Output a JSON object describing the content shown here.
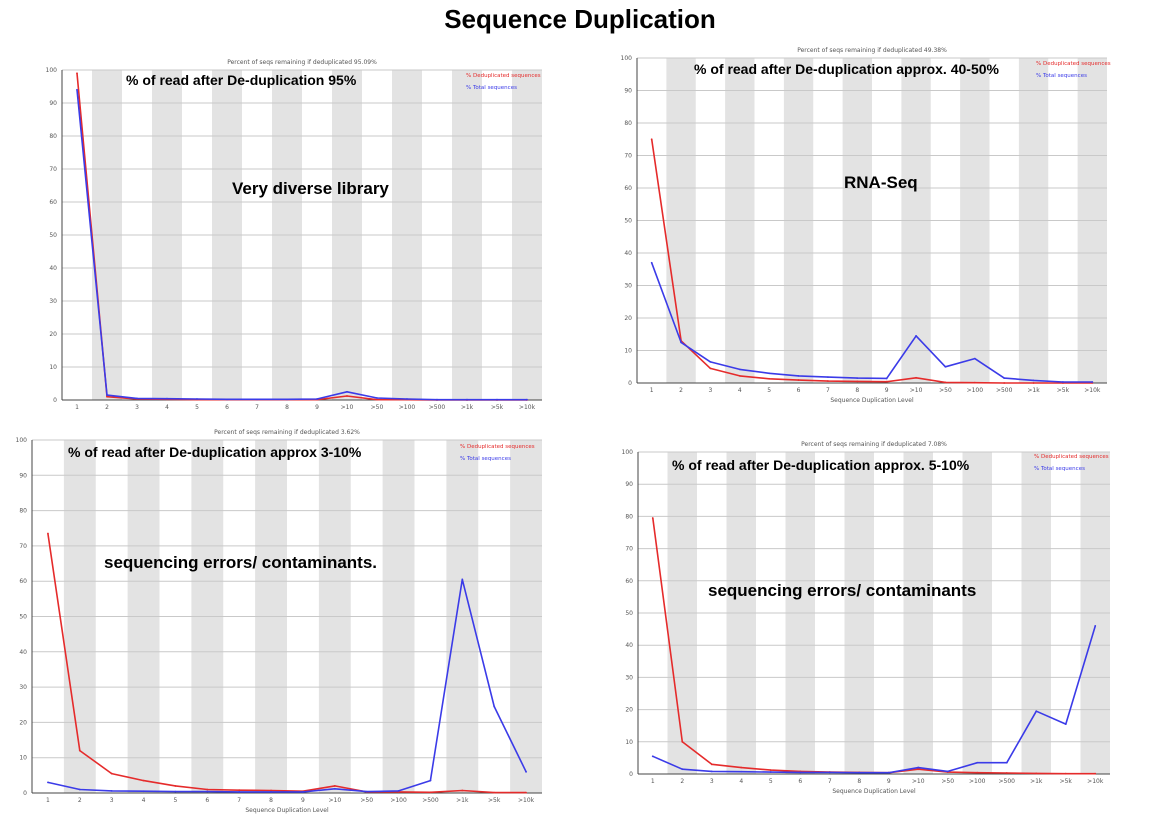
{
  "page": {
    "title": "Sequence Duplication"
  },
  "colors": {
    "dedup": "#e52b2b",
    "total": "#3b3be8",
    "stripe": "#e3e3e3",
    "axis": "#444444"
  },
  "chart_data": [
    {
      "type": "line",
      "title": "Percent of seqs remaining if deduplicated 95.09%",
      "xlabel": "",
      "ylabel": "",
      "annotation_top": "% of read after De-duplication 95%",
      "annotation_mid": "Very diverse library",
      "categories": [
        "1",
        "2",
        "3",
        "4",
        "5",
        "6",
        "7",
        "8",
        "9",
        ">10",
        ">50",
        ">100",
        ">500",
        ">1k",
        ">5k",
        ">10k"
      ],
      "yticks": [
        "0",
        "10",
        "20",
        "30",
        "40",
        "50",
        "60",
        "70",
        "80",
        "90",
        "100"
      ],
      "ylim": [
        0,
        100
      ],
      "grid": true,
      "legend_position": "top-right",
      "series": [
        {
          "name": "% Deduplicated sequences",
          "color": "#e52b2b",
          "values": [
            99,
            1,
            0.3,
            0.2,
            0.1,
            0.1,
            0.1,
            0.1,
            0.1,
            1.2,
            0.1,
            0.1,
            0,
            0,
            0,
            0
          ]
        },
        {
          "name": "% Total sequences",
          "color": "#3b3be8",
          "values": [
            94,
            1.5,
            0.5,
            0.4,
            0.3,
            0.2,
            0.2,
            0.2,
            0.3,
            2.5,
            0.6,
            0.3,
            0.1,
            0.1,
            0.1,
            0.1
          ]
        }
      ]
    },
    {
      "type": "line",
      "title": "Percent of seqs remaining if deduplicated 49.38%",
      "xlabel": "Sequence Duplication Level",
      "ylabel": "",
      "annotation_top": "% of read after De-duplication approx. 40-50%",
      "annotation_mid": "RNA-Seq",
      "categories": [
        "1",
        "2",
        "3",
        "4",
        "5",
        "6",
        "7",
        "8",
        "9",
        ">10",
        ">50",
        ">100",
        ">500",
        ">1k",
        ">5k",
        ">10k"
      ],
      "yticks": [
        "0",
        "10",
        "20",
        "30",
        "40",
        "50",
        "60",
        "70",
        "80",
        "90",
        "100"
      ],
      "ylim": [
        0,
        100
      ],
      "grid": true,
      "legend_position": "top-right",
      "series": [
        {
          "name": "% Deduplicated sequences",
          "color": "#e52b2b",
          "values": [
            75,
            13,
            4.5,
            2.2,
            1.3,
            0.9,
            0.6,
            0.5,
            0.4,
            1.6,
            0.2,
            0.1,
            0,
            0,
            0,
            0
          ]
        },
        {
          "name": "% Total sequences",
          "color": "#3b3be8",
          "values": [
            37,
            12.5,
            6.5,
            4.2,
            3,
            2.2,
            1.8,
            1.5,
            1.4,
            14.5,
            5,
            7.5,
            1.5,
            0.8,
            0.3,
            0.3
          ]
        }
      ]
    },
    {
      "type": "line",
      "title": "Percent of seqs remaining if deduplicated 3.62%",
      "xlabel": "Sequence Duplication Level",
      "ylabel": "",
      "annotation_top": "% of read after De-duplication approx 3-10%",
      "annotation_mid": "sequencing errors/ contaminants.",
      "categories": [
        "1",
        "2",
        "3",
        "4",
        "5",
        "6",
        "7",
        "8",
        "9",
        ">10",
        ">50",
        ">100",
        ">500",
        ">1k",
        ">5k",
        ">10k"
      ],
      "yticks": [
        "0",
        "10",
        "20",
        "30",
        "40",
        "50",
        "60",
        "70",
        "80",
        "90",
        "100"
      ],
      "ylim": [
        0,
        100
      ],
      "grid": true,
      "legend_position": "top-right",
      "series": [
        {
          "name": "% Deduplicated sequences",
          "color": "#e52b2b",
          "values": [
            73.5,
            12,
            5.5,
            3.5,
            2,
            1,
            0.8,
            0.7,
            0.5,
            2,
            0.3,
            0.3,
            0.2,
            0.7,
            0.1,
            0.1
          ]
        },
        {
          "name": "% Total sequences",
          "color": "#3b3be8",
          "values": [
            3,
            1,
            0.6,
            0.5,
            0.4,
            0.4,
            0.3,
            0.3,
            0.3,
            1.2,
            0.4,
            0.6,
            3.5,
            60.5,
            24.5,
            6
          ]
        }
      ]
    },
    {
      "type": "line",
      "title": "Percent of seqs remaining if deduplicated 7.08%",
      "xlabel": "Sequence Duplication Level",
      "ylabel": "",
      "annotation_top": "% of read after De-duplication approx. 5-10%",
      "annotation_mid": "sequencing errors/ contaminants",
      "categories": [
        "1",
        "2",
        "3",
        "4",
        "5",
        "6",
        "7",
        "8",
        "9",
        ">10",
        ">50",
        ">100",
        ">500",
        ">1k",
        ">5k",
        ">10k"
      ],
      "yticks": [
        "0",
        "10",
        "20",
        "30",
        "40",
        "50",
        "60",
        "70",
        "80",
        "90",
        "100"
      ],
      "ylim": [
        0,
        100
      ],
      "grid": true,
      "legend_position": "top-right",
      "series": [
        {
          "name": "% Deduplicated sequences",
          "color": "#e52b2b",
          "values": [
            79.5,
            10,
            3,
            2,
            1.2,
            0.8,
            0.6,
            0.5,
            0.4,
            1.5,
            0.6,
            0.4,
            0.3,
            0.2,
            0.1,
            0.1
          ]
        },
        {
          "name": "% Total sequences",
          "color": "#3b3be8",
          "values": [
            5.5,
            1.5,
            0.8,
            0.7,
            0.6,
            0.5,
            0.5,
            0.4,
            0.4,
            2,
            0.8,
            3.5,
            3.5,
            19.5,
            15.5,
            46
          ]
        }
      ]
    }
  ]
}
